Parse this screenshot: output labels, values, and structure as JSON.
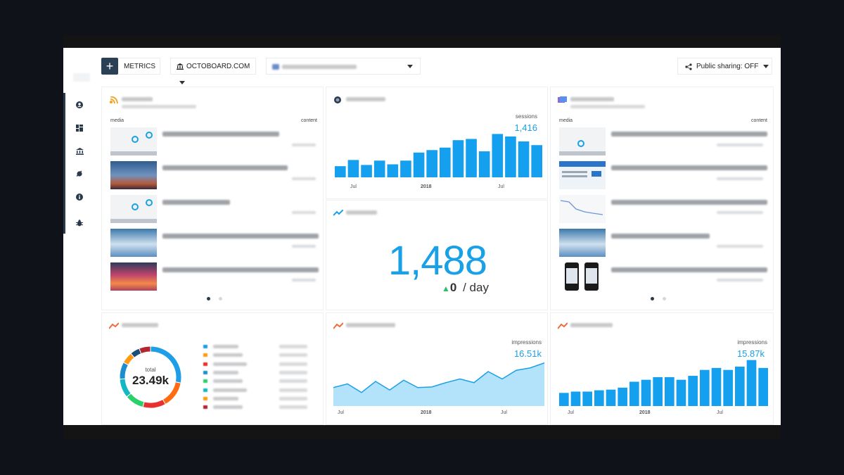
{
  "header": {
    "add_icon": "plus-icon",
    "metrics_label": "METRICS",
    "account_label": "OCTOBOARD.COM",
    "sharing_label": "Public sharing: OFF"
  },
  "sidebar": {
    "icons": [
      "user-icon",
      "dashboard-icon",
      "bank-icon",
      "plugin-icon",
      "info-icon",
      "bug-icon"
    ]
  },
  "widgets": {
    "rss": {
      "col_media": "media",
      "col_content": "content"
    },
    "alexa": {
      "metric_label": "sessions",
      "metric_value": "1,416",
      "x_labels": [
        "Jul",
        "2018",
        "Jul"
      ]
    },
    "rank": {
      "value": "1,488",
      "delta": "0",
      "unit": "/ day"
    },
    "news": {
      "col_media": "media",
      "col_content": "content"
    },
    "top_pages": {
      "total_label": "total",
      "total_value": "23.49k"
    },
    "external": {
      "metric_label": "impressions",
      "metric_value": "16.51k",
      "x_labels": [
        "Jul",
        "2018",
        "Jul"
      ]
    },
    "impressions": {
      "metric_label": "impressions",
      "metric_value": "15.87k",
      "x_labels": [
        "Jul",
        "2018",
        "Jul"
      ]
    }
  },
  "chart_data": [
    {
      "type": "bar",
      "name": "alexa",
      "values": [
        18,
        28,
        20,
        27,
        21,
        27,
        40,
        44,
        48,
        60,
        62,
        42,
        70,
        66,
        58,
        52
      ],
      "ylim": [
        0,
        75
      ]
    },
    {
      "type": "area",
      "name": "external",
      "values": [
        30,
        36,
        22,
        40,
        26,
        42,
        30,
        31,
        38,
        44,
        38,
        56,
        44,
        58,
        62,
        70
      ],
      "ylim": [
        0,
        80
      ]
    },
    {
      "type": "bar",
      "name": "impressions",
      "values": [
        20,
        22,
        22,
        24,
        25,
        28,
        37,
        40,
        44,
        44,
        40,
        46,
        55,
        58,
        55,
        60,
        70,
        58
      ],
      "ylim": [
        0,
        75
      ]
    },
    {
      "type": "pie",
      "name": "top_pages",
      "values": [
        28,
        14,
        12,
        10,
        10,
        9,
        6,
        5,
        6
      ],
      "colors": [
        "#1e9ee6",
        "#ff6a13",
        "#e8302e",
        "#2bd06b",
        "#13b6c4",
        "#1c8ecf",
        "#ff9c12",
        "#1b4f7a",
        "#b3262e"
      ]
    }
  ]
}
